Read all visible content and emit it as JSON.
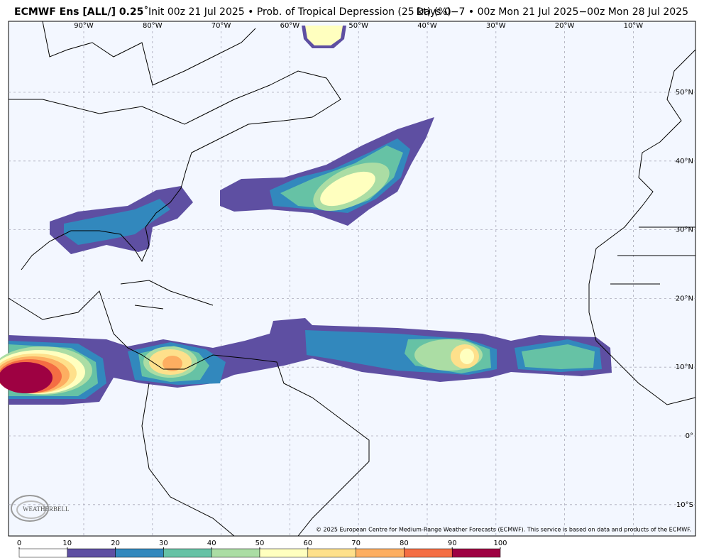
{
  "header": {
    "model": "ECMWF Ens [ALL/] 0.25˚",
    "description": "Init 00z 21 Jul 2025 • Prob. of Tropical Depression (25 kt) (%)",
    "valid": "Days 0−7 • 00z Mon 21 Jul 2025−00z Mon 28 Jul 2025"
  },
  "map": {
    "longitude_labels": [
      "90°W",
      "80°W",
      "70°W",
      "60°W",
      "50°W",
      "40°W",
      "30°W",
      "20°W",
      "10°W"
    ],
    "latitude_labels": [
      "50°N",
      "40°N",
      "30°N",
      "20°N",
      "10°N",
      "0°",
      "10°S"
    ],
    "credit": "© 2025 European Centre for Medium-Range Weather Forecasts (ECMWF). This service is based on data and products of the ECMWF.",
    "logo": "WEATHERBELL"
  },
  "colorbar": {
    "ticks": [
      0,
      10,
      20,
      30,
      40,
      50,
      60,
      70,
      80,
      90,
      100
    ],
    "colors": [
      "#ffffff",
      "#5e4fa2",
      "#3288bd",
      "#66c2a5",
      "#abdda4",
      "#ffffbf",
      "#fee08b",
      "#fdae61",
      "#f46d43",
      "#9e0142"
    ]
  }
}
